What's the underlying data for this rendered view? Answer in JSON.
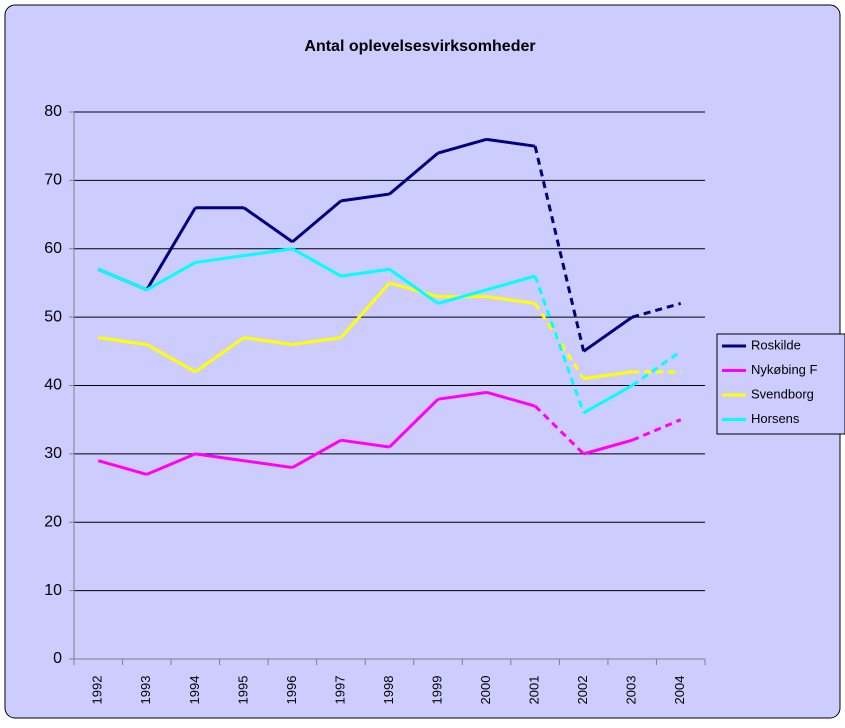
{
  "chart_data": {
    "type": "line",
    "title": "Antal oplevelsesvirksomheder",
    "categories": [
      "1992",
      "1993",
      "1994",
      "1995",
      "1996",
      "1997",
      "1998",
      "1999",
      "2000",
      "2001",
      "2002",
      "2003",
      "2004"
    ],
    "series": [
      {
        "name": "Roskilde",
        "color": "#000080",
        "values": [
          57,
          54,
          66,
          66,
          61,
          67,
          68,
          74,
          76,
          75,
          45,
          50,
          52
        ]
      },
      {
        "name": "Nykøbing F",
        "color": "#ff00ff",
        "values": [
          29,
          27,
          30,
          29,
          28,
          32,
          31,
          38,
          39,
          37,
          30,
          32,
          35
        ]
      },
      {
        "name": "Svendborg",
        "color": "#ffff00",
        "values": [
          47,
          46,
          42,
          47,
          46,
          47,
          55,
          53,
          53,
          52,
          41,
          42,
          42
        ]
      },
      {
        "name": "Horsens",
        "color": "#00ffff",
        "values": [
          57,
          54,
          58,
          59,
          60,
          56,
          57,
          52,
          54,
          56,
          36,
          40,
          45
        ]
      }
    ],
    "dashed_segments": [
      [
        9,
        10
      ],
      [
        11,
        12
      ]
    ],
    "ylim": [
      0,
      80
    ],
    "yticks": [
      0,
      10,
      20,
      30,
      40,
      50,
      60,
      70,
      80
    ],
    "grid": true,
    "legend": "right"
  }
}
